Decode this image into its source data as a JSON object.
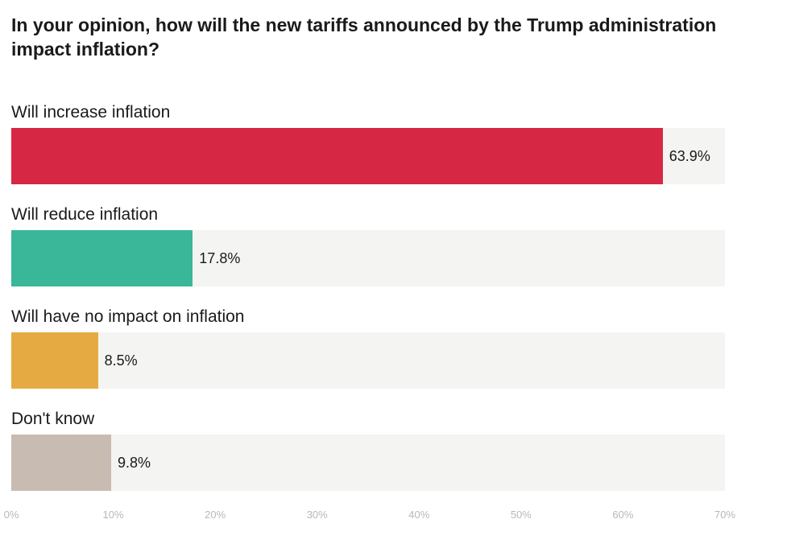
{
  "chart_data": {
    "type": "bar",
    "orientation": "horizontal",
    "title": "In your opinion, how will the new tariffs announced by the Trump administration impact inflation?",
    "categories": [
      "Will increase inflation",
      "Will reduce inflation",
      "Will have no impact on inflation",
      "Don't know"
    ],
    "values": [
      63.9,
      17.8,
      8.5,
      9.8
    ],
    "value_labels": [
      "63.9%",
      "17.8%",
      "8.5%",
      "9.8%"
    ],
    "colors": [
      "#d62744",
      "#3ab798",
      "#e5ab42",
      "#c8bbb1"
    ],
    "xlim": [
      0,
      70
    ],
    "xticks": [
      0,
      10,
      20,
      30,
      40,
      50,
      60,
      70
    ],
    "xtick_labels": [
      "0%",
      "10%",
      "20%",
      "30%",
      "40%",
      "50%",
      "60%",
      "70%"
    ],
    "xlabel": "",
    "ylabel": "",
    "legend": "none"
  }
}
